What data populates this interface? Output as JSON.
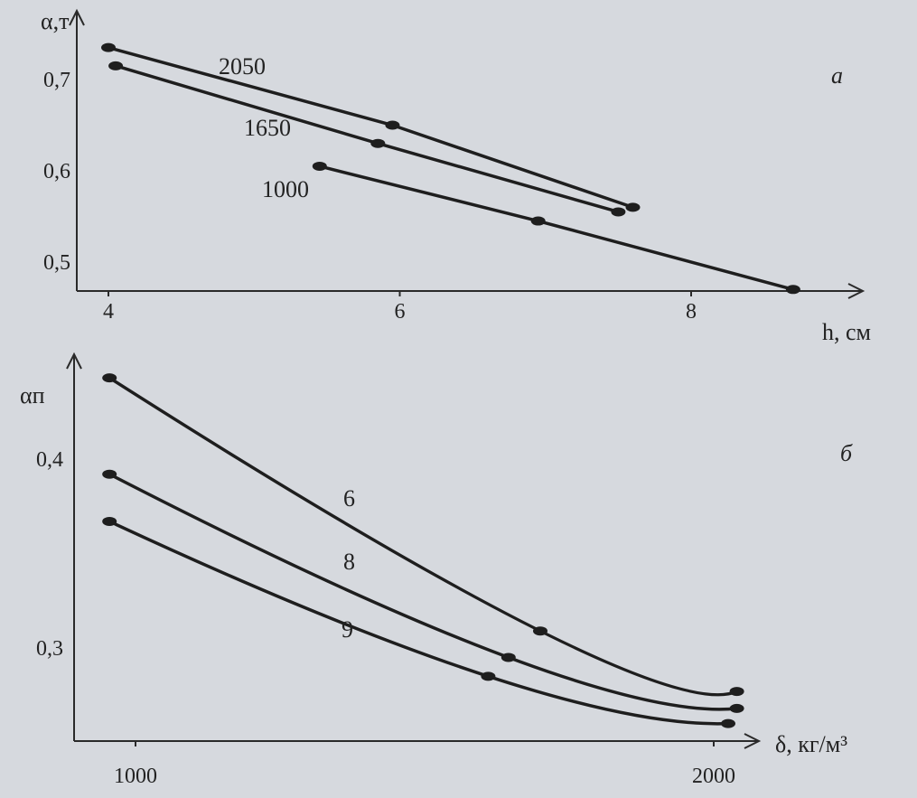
{
  "chart_data": [
    {
      "type": "line",
      "panel": "a",
      "xlabel": "h, см",
      "ylabel": "α,т",
      "xlim": [
        3.9,
        9.0
      ],
      "ylim": [
        0.465,
        0.75
      ],
      "x_ticks": [
        {
          "value": 4,
          "label": "4"
        },
        {
          "value": 6,
          "label": "6"
        },
        {
          "value": 8,
          "label": "8"
        }
      ],
      "y_ticks": [
        {
          "value": 0.5,
          "label": "0,5"
        },
        {
          "value": 0.6,
          "label": "0,6"
        },
        {
          "value": 0.7,
          "label": "0,7"
        }
      ],
      "series": [
        {
          "name": "2050",
          "points": [
            [
              4.0,
              0.735
            ],
            [
              5.95,
              0.65
            ],
            [
              7.6,
              0.56
            ]
          ]
        },
        {
          "name": "1650",
          "points": [
            [
              4.05,
              0.715
            ],
            [
              5.85,
              0.63
            ],
            [
              7.5,
              0.555
            ]
          ]
        },
        {
          "name": "1000",
          "points": [
            [
              5.45,
              0.605
            ],
            [
              6.95,
              0.545
            ],
            [
              8.7,
              0.47
            ]
          ]
        }
      ]
    },
    {
      "type": "line",
      "panel": "б",
      "xlabel": "δ, кг/м³",
      "ylabel": "αп",
      "xlim": [
        880,
        2100
      ],
      "ylim": [
        0.253,
        0.445
      ],
      "x_ticks": [
        {
          "value": 1000,
          "label": "1000"
        },
        {
          "value": 2000,
          "label": "2000"
        }
      ],
      "y_ticks": [
        {
          "value": 0.3,
          "label": "0,3"
        },
        {
          "value": 0.4,
          "label": "0,4"
        }
      ],
      "series": [
        {
          "name": "6",
          "points": [
            [
              955,
              0.443
            ],
            [
              1700,
              0.309
            ],
            [
              2040,
              0.277
            ]
          ]
        },
        {
          "name": "8",
          "points": [
            [
              955,
              0.392
            ],
            [
              1645,
              0.295
            ],
            [
              2040,
              0.268
            ]
          ]
        },
        {
          "name": "9",
          "points": [
            [
              955,
              0.367
            ],
            [
              1610,
              0.285
            ],
            [
              2025,
              0.26
            ]
          ]
        }
      ]
    }
  ]
}
